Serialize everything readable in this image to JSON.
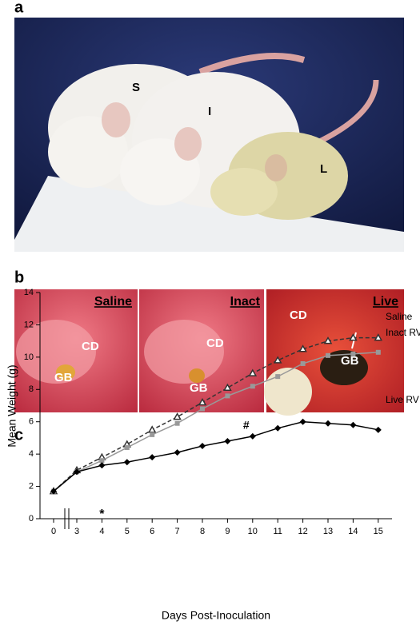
{
  "panels": {
    "a": {
      "label": "a",
      "annotations": [
        "S",
        "I",
        "L"
      ]
    },
    "b": {
      "label": "b",
      "images": [
        {
          "title": "Saline",
          "annotations": [
            "CD",
            "GB"
          ]
        },
        {
          "title": "Inact",
          "annotations": [
            "CD",
            "GB"
          ]
        },
        {
          "title": "Live",
          "annotations": [
            "CD",
            "GB"
          ]
        }
      ]
    },
    "c": {
      "label": "c"
    }
  },
  "chart_data": {
    "type": "line",
    "x_label": "Days Post-Inoculation",
    "y_label": "Mean Weight (g)",
    "categories": [
      "0",
      "3",
      "4",
      "5",
      "6",
      "7",
      "8",
      "9",
      "10",
      "11",
      "12",
      "13",
      "14",
      "15"
    ],
    "ylim": [
      0,
      14
    ],
    "yticks": [
      0,
      2,
      4,
      6,
      8,
      10,
      12,
      14
    ],
    "annotations": [
      "*",
      "#"
    ],
    "series": [
      {
        "name": "Saline",
        "color": "#333333",
        "linestyle": "dashed",
        "marker": "triangle",
        "values": [
          1.7,
          3.0,
          3.8,
          4.6,
          5.5,
          6.3,
          7.2,
          8.1,
          9.0,
          9.8,
          10.5,
          11.0,
          11.2,
          11.2
        ]
      },
      {
        "name": "Inact RV",
        "color": "#999999",
        "linestyle": "solid",
        "marker": "square",
        "values": [
          1.7,
          2.9,
          3.6,
          4.4,
          5.2,
          5.9,
          6.8,
          7.6,
          8.2,
          8.8,
          9.6,
          10.1,
          10.2,
          10.3
        ]
      },
      {
        "name": "Live RV",
        "color": "#000000",
        "linestyle": "solid",
        "marker": "diamond",
        "values": [
          1.7,
          2.9,
          3.3,
          3.5,
          3.8,
          4.1,
          4.5,
          4.8,
          5.1,
          5.6,
          6.0,
          5.9,
          5.8,
          5.5
        ]
      }
    ]
  }
}
